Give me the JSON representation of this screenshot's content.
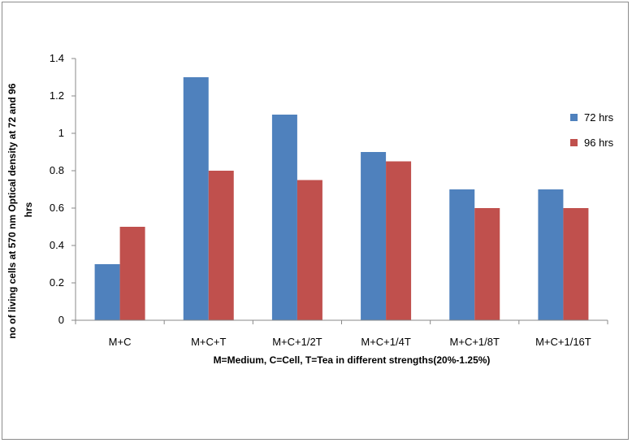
{
  "chart_data": {
    "type": "bar",
    "categories": [
      "M+C",
      "M+C+T",
      "M+C+1/2T",
      "M+C+1/4T",
      "M+C+1/8T",
      "M+C+1/16T"
    ],
    "series": [
      {
        "name": "72 hrs",
        "color": "#4f81bd",
        "values": [
          0.3,
          1.3,
          1.1,
          0.9,
          0.7,
          0.7
        ]
      },
      {
        "name": "96 hrs",
        "color": "#c0504d",
        "values": [
          0.5,
          0.8,
          0.75,
          0.85,
          0.6,
          0.6
        ]
      }
    ],
    "title": "",
    "xlabel": "M=Medium, C=Cell,  T=Tea in different strengths(20%-1.25%)",
    "ylabel_line1": "no of living cells at 570 nm Optical density at 72 and 96",
    "ylabel_line2": "hrs",
    "ylim": [
      0,
      1.4
    ],
    "yticks": [
      "0",
      "0.2",
      "0.4",
      "0.6",
      "0.8",
      "1",
      "1.2",
      "1.4"
    ],
    "grid": false,
    "legend_position": "right"
  }
}
